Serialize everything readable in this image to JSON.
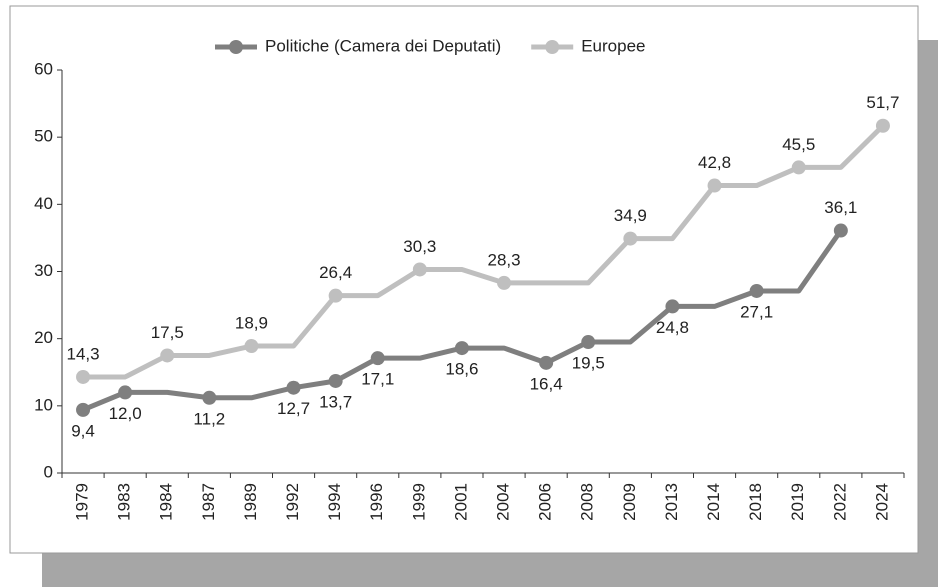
{
  "chart_data": {
    "type": "line",
    "categories": [
      "1979",
      "1983",
      "1984",
      "1987",
      "1989",
      "1992",
      "1994",
      "1996",
      "1999",
      "2001",
      "2004",
      "2006",
      "2008",
      "2009",
      "2013",
      "2014",
      "2018",
      "2019",
      "2022",
      "2024"
    ],
    "series": [
      {
        "name": "Politiche (Camera dei Deputati)",
        "color": "#7f7f7f",
        "values": [
          9.4,
          12.0,
          12.0,
          11.2,
          11.2,
          12.7,
          13.7,
          17.1,
          17.1,
          18.6,
          18.6,
          16.4,
          19.5,
          19.5,
          24.8,
          24.8,
          27.1,
          27.1,
          36.1,
          null
        ],
        "value_labels": [
          "9,4",
          "12,0",
          null,
          "11,2",
          null,
          "12,7",
          "13,7",
          "17,1",
          null,
          "18,6",
          null,
          "16,4",
          "19,5",
          null,
          "24,8",
          null,
          "27,1",
          null,
          "36,1",
          null
        ]
      },
      {
        "name": "Europee",
        "color": "#bfbfbf",
        "values": [
          14.3,
          14.3,
          17.5,
          17.5,
          18.9,
          18.9,
          26.4,
          26.4,
          30.3,
          30.3,
          28.3,
          28.3,
          28.3,
          34.9,
          34.9,
          42.8,
          42.8,
          45.5,
          45.5,
          51.7
        ],
        "value_labels": [
          "14,3",
          null,
          "17,5",
          null,
          "18,9",
          null,
          "26,4",
          null,
          "30,3",
          null,
          "28,3",
          null,
          null,
          "34,9",
          null,
          "42,8",
          null,
          "45,5",
          null,
          "51,7"
        ]
      }
    ],
    "ylim": [
      0,
      60
    ],
    "yticks": [
      0,
      10,
      20,
      30,
      40,
      50,
      60
    ],
    "grid": false,
    "legend": "top"
  }
}
